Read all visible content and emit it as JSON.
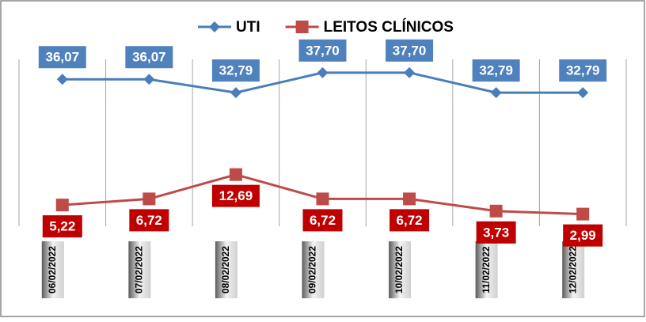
{
  "chart_data": {
    "type": "line",
    "categories": [
      "06/02/2022",
      "07/02/2022",
      "08/02/2022",
      "09/02/2022",
      "10/02/2022",
      "11/02/2022",
      "12/02/2022"
    ],
    "series": [
      {
        "name": "UTI",
        "color": "#4a7ebb",
        "label_color": "#4f81bd",
        "marker": "diamond",
        "values": [
          36.07,
          36.07,
          32.79,
          37.7,
          37.7,
          32.79,
          32.79
        ],
        "value_labels": [
          "36,07",
          "36,07",
          "32,79",
          "37,70",
          "37,70",
          "32,79",
          "32,79"
        ]
      },
      {
        "name": "LEITOS CLÍNICOS",
        "color": "#be4b48",
        "label_color": "#c00000",
        "marker": "square",
        "values": [
          5.22,
          6.72,
          12.69,
          6.72,
          6.72,
          3.73,
          2.99
        ],
        "value_labels": [
          "5,22",
          "6,72",
          "12,69",
          "6,72",
          "6,72",
          "3,73",
          "2,99"
        ]
      }
    ]
  }
}
